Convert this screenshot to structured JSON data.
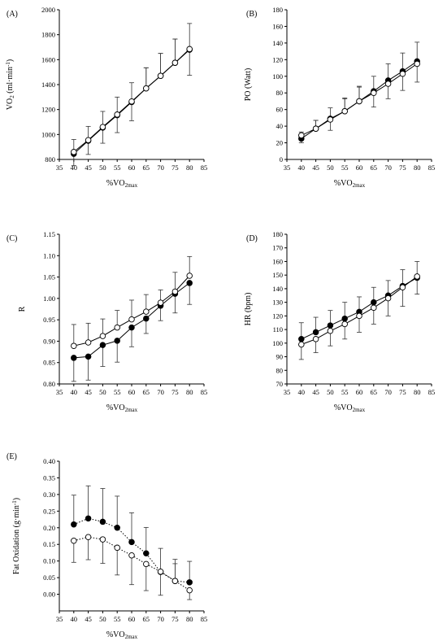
{
  "chart_data": [
    {
      "type": "line",
      "panel_label": "(A)",
      "xlabel": "%VO",
      "xlabel_sub": "2max",
      "ylabel": "VO",
      "ylabel_sub": "2",
      "ylabel_unit": " (ml·min",
      "ylabel_sup": "-1",
      "ylabel_close": ")",
      "xlim": [
        35,
        85
      ],
      "ylim": [
        800,
        2000
      ],
      "xticks": [
        35,
        40,
        45,
        50,
        55,
        60,
        65,
        70,
        75,
        80,
        85
      ],
      "yticks": [
        800,
        1000,
        1200,
        1400,
        1600,
        1800,
        2000
      ],
      "ytick_decimals": 0,
      "x": [
        40,
        45,
        50,
        55,
        60,
        65,
        70,
        75,
        80
      ],
      "series": [
        {
          "marker": "filled",
          "line": "solid",
          "values": [
            845,
            950,
            1055,
            1155,
            1260,
            1370,
            1470,
            1575,
            1680
          ],
          "err": [
            95,
            110,
            125,
            140,
            150,
            165,
            180,
            190,
            205
          ]
        },
        {
          "marker": "open",
          "line": "solid",
          "values": [
            860,
            955,
            1060,
            1160,
            1265,
            1370,
            1470,
            1575,
            1685
          ],
          "err": [
            100,
            110,
            125,
            140,
            150,
            165,
            180,
            190,
            205
          ]
        }
      ]
    },
    {
      "type": "line",
      "panel_label": "(B)",
      "xlabel": "%VO",
      "xlabel_sub": "2max",
      "ylabel": "PO (Watt)",
      "xlim": [
        35,
        85
      ],
      "ylim": [
        0,
        180
      ],
      "xticks": [
        35,
        40,
        45,
        50,
        55,
        60,
        65,
        70,
        75,
        80,
        85
      ],
      "yticks": [
        0,
        20,
        40,
        60,
        80,
        100,
        120,
        140,
        160,
        180
      ],
      "ytick_decimals": 0,
      "x": [
        40,
        45,
        50,
        55,
        60,
        65,
        70,
        75,
        80
      ],
      "series": [
        {
          "marker": "filled",
          "line": "solid",
          "values": [
            25,
            37,
            49,
            58,
            70,
            82,
            95,
            106,
            118
          ],
          "err": [
            5,
            10,
            13,
            16,
            18,
            18,
            20,
            22,
            23
          ]
        },
        {
          "marker": "open",
          "line": "solid",
          "values": [
            29,
            37,
            48,
            58,
            70,
            80,
            91,
            103,
            115
          ],
          "err": [
            4,
            10,
            13,
            15,
            17,
            17,
            18,
            20,
            22
          ]
        }
      ]
    },
    {
      "type": "line",
      "panel_label": "(C)",
      "xlabel": "%VO",
      "xlabel_sub": "2max",
      "ylabel": "R",
      "xlim": [
        35,
        85
      ],
      "ylim": [
        0.8,
        1.15
      ],
      "xticks": [
        35,
        40,
        45,
        50,
        55,
        60,
        65,
        70,
        75,
        80,
        85
      ],
      "yticks": [
        0.8,
        0.85,
        0.9,
        0.95,
        1.0,
        1.05,
        1.1,
        1.15
      ],
      "ytick_decimals": 2,
      "x": [
        40,
        45,
        50,
        55,
        60,
        65,
        70,
        75,
        80
      ],
      "series": [
        {
          "marker": "filled",
          "line": "solid",
          "values": [
            0.861,
            0.864,
            0.891,
            0.901,
            0.932,
            0.953,
            0.983,
            1.011,
            1.036
          ],
          "err": [
            0.055,
            0.055,
            0.05,
            0.05,
            0.045,
            0.035,
            0.035,
            0.045,
            0.05
          ]
        },
        {
          "marker": "open",
          "line": "solid",
          "values": [
            0.889,
            0.897,
            0.912,
            0.932,
            0.951,
            0.969,
            0.99,
            1.016,
            1.053
          ],
          "err": [
            0.05,
            0.045,
            0.04,
            0.04,
            0.045,
            0.04,
            0.03,
            0.045,
            0.045
          ]
        }
      ]
    },
    {
      "type": "line",
      "panel_label": "(D)",
      "xlabel": "%VO",
      "xlabel_sub": "2max",
      "ylabel": "HR (bpm)",
      "xlim": [
        35,
        85
      ],
      "ylim": [
        70,
        180
      ],
      "xticks": [
        35,
        40,
        45,
        50,
        55,
        60,
        65,
        70,
        75,
        80,
        85
      ],
      "yticks": [
        70,
        80,
        90,
        100,
        110,
        120,
        130,
        140,
        150,
        160,
        170,
        180
      ],
      "ytick_decimals": 0,
      "x": [
        40,
        45,
        50,
        55,
        60,
        65,
        70,
        75,
        80
      ],
      "series": [
        {
          "marker": "filled",
          "line": "solid",
          "values": [
            103,
            108,
            113,
            118,
            123,
            130,
            135,
            142,
            148
          ],
          "err": [
            12,
            11,
            11,
            12,
            11,
            11,
            11,
            12,
            12
          ]
        },
        {
          "marker": "open",
          "line": "solid",
          "values": [
            99,
            103,
            109,
            114,
            120,
            126,
            133,
            141,
            149
          ],
          "err": [
            11,
            10,
            11,
            11,
            12,
            12,
            13,
            14,
            11
          ]
        }
      ]
    },
    {
      "type": "line",
      "panel_label": "(E)",
      "xlabel": "%VO",
      "xlabel_sub": "2max",
      "ylabel": "Fat Oxidation (g·min",
      "ylabel_sup": "-1",
      "ylabel_close": ")",
      "xlim": [
        35,
        85
      ],
      "ylim": [
        -0.05,
        0.4
      ],
      "xticks": [
        35,
        40,
        45,
        50,
        55,
        60,
        65,
        70,
        75,
        80,
        85
      ],
      "yticks": [
        0.0,
        0.05,
        0.1,
        0.15,
        0.2,
        0.25,
        0.3,
        0.35,
        0.4
      ],
      "ytick_decimals": 2,
      "x": [
        40,
        45,
        50,
        55,
        60,
        65,
        70,
        75,
        80
      ],
      "series": [
        {
          "marker": "filled",
          "line": "dotted",
          "values": [
            0.21,
            0.228,
            0.218,
            0.2,
            0.157,
            0.123,
            0.067,
            0.04,
            0.036
          ],
          "err": [
            0.088,
            0.098,
            0.1,
            0.095,
            0.088,
            0.078,
            0.07,
            0.065,
            0.063
          ]
        },
        {
          "marker": "open",
          "line": "dotted",
          "values": [
            0.161,
            0.172,
            0.165,
            0.14,
            0.117,
            0.091,
            0.068,
            0.04,
            0.012
          ],
          "err": [
            0.065,
            0.068,
            0.072,
            0.082,
            0.088,
            0.08,
            0.07,
            0.052,
            0.028
          ]
        }
      ]
    }
  ]
}
